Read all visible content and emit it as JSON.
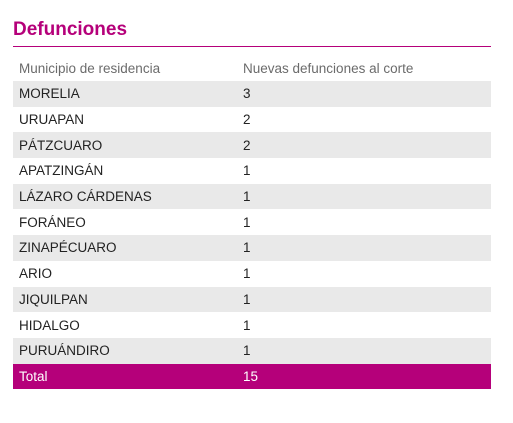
{
  "title": "Defunciones",
  "accent_color": "#b5007a",
  "stripe_color": "#e9e9e9",
  "headers": [
    "Municipio de residencia",
    "Nuevas defunciones al corte"
  ],
  "rows": [
    {
      "municipio": "MORELIA",
      "defunciones": "3"
    },
    {
      "municipio": "URUAPAN",
      "defunciones": "2"
    },
    {
      "municipio": "PÁTZCUARO",
      "defunciones": "2"
    },
    {
      "municipio": "APATZINGÁN",
      "defunciones": "1"
    },
    {
      "municipio": "LÁZARO CÁRDENAS",
      "defunciones": "1"
    },
    {
      "municipio": "FORÁNEO",
      "defunciones": "1"
    },
    {
      "municipio": "ZINAPÉCUARO",
      "defunciones": "1"
    },
    {
      "municipio": "ARIO",
      "defunciones": "1"
    },
    {
      "municipio": "JIQUILPAN",
      "defunciones": "1"
    },
    {
      "municipio": "HIDALGO",
      "defunciones": "1"
    },
    {
      "municipio": "PURUÁNDIRO",
      "defunciones": "1"
    }
  ],
  "total": {
    "label": "Total",
    "value": "15"
  }
}
